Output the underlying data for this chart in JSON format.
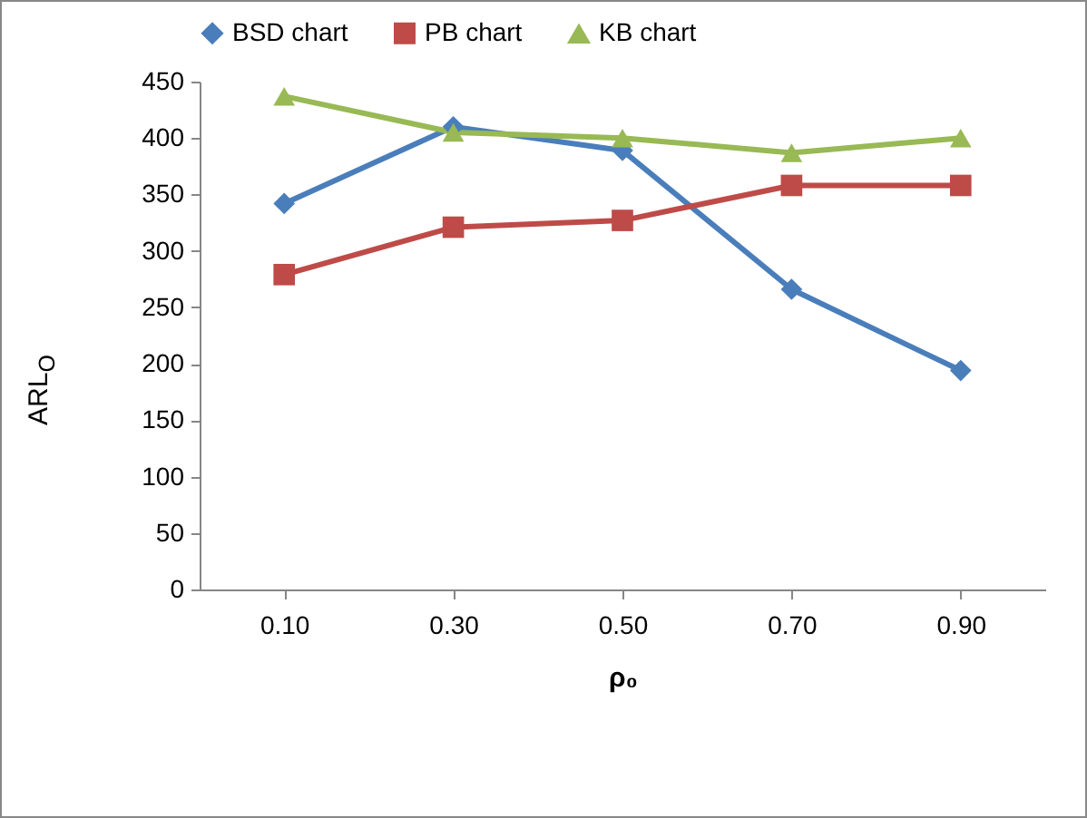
{
  "chart_data": {
    "type": "line",
    "xlabel": "ρ₀",
    "ylabel": "ARL$_{O}$",
    "categories": [
      "0.10",
      "0.30",
      "0.50",
      "0.70",
      "0.90"
    ],
    "series": [
      {
        "name": "BSD chart",
        "color": "#4a7ebb",
        "marker": "diamond",
        "values": [
          342,
          410,
          389,
          266,
          194
        ]
      },
      {
        "name": "PB chart",
        "color": "#be4b48",
        "marker": "square",
        "values": [
          279,
          321,
          327,
          358,
          358
        ]
      },
      {
        "name": "KB chart",
        "color": "#98b954",
        "marker": "triangle",
        "values": [
          437,
          405,
          400,
          387,
          400
        ]
      }
    ],
    "ylim": [
      0,
      450
    ],
    "yticks": [
      0,
      50,
      100,
      150,
      200,
      250,
      300,
      350,
      400,
      450
    ],
    "grid": false,
    "legend": "top",
    "line_style": "solid"
  }
}
